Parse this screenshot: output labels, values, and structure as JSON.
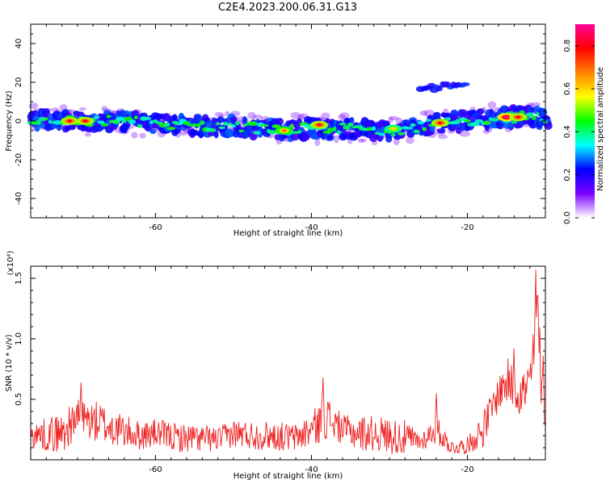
{
  "figure_title": "C2E4.2023.200.06.31.G13",
  "chart_data": [
    {
      "type": "heatmap",
      "xlabel": "Height of straight line (km)",
      "ylabel": "Frequency (Hz)",
      "xlim": [
        -76,
        -10
      ],
      "ylim": [
        -50,
        50
      ],
      "x_ticks": [
        -60,
        -40,
        -20
      ],
      "y_ticks": [
        -40,
        -20,
        0,
        20,
        40
      ],
      "colorbar": {
        "label": "Normalized spectral amplitude",
        "range": [
          0.0,
          0.9
        ],
        "ticks": [
          "0.0",
          "0.2",
          "0.4",
          "0.6",
          "0.8"
        ],
        "colors": [
          "#ffffff",
          "#7b00ff",
          "#0000ff",
          "#00ffff",
          "#00ff00",
          "#ffff00",
          "#ff8000",
          "#ff0000",
          "#ff0099"
        ]
      },
      "main_band_center_hz": [
        [
          -76,
          1
        ],
        [
          -70,
          0
        ],
        [
          -65,
          0
        ],
        [
          -60,
          -1
        ],
        [
          -55,
          -2
        ],
        [
          -50,
          -3
        ],
        [
          -45,
          -4
        ],
        [
          -40,
          -4
        ],
        [
          -35,
          -4
        ],
        [
          -30,
          -5
        ],
        [
          -25,
          -2
        ],
        [
          -20,
          0
        ],
        [
          -16,
          2
        ],
        [
          -12,
          2
        ],
        [
          -10,
          1
        ]
      ],
      "secondary_feature": {
        "x": [
          -26,
          -20
        ],
        "center_hz": [
          16,
          20
        ]
      },
      "hot_spots": [
        {
          "x": -71,
          "y": 0,
          "v": 0.8
        },
        {
          "x": -69,
          "y": 0,
          "v": 0.8
        },
        {
          "x": -43.5,
          "y": -5,
          "v": 0.7
        },
        {
          "x": -39,
          "y": -2,
          "v": 0.8
        },
        {
          "x": -29.5,
          "y": -4,
          "v": 0.6
        },
        {
          "x": -23.5,
          "y": -1,
          "v": 0.8
        },
        {
          "x": -15,
          "y": 2,
          "v": 0.9
        },
        {
          "x": -13.5,
          "y": 2,
          "v": 0.8
        }
      ]
    },
    {
      "type": "line",
      "xlabel": "Height of straight line (km)",
      "ylabel": "SNR (10 * v/v)",
      "y_scale_label": "(x10⁴)",
      "xlim": [
        -76,
        -10
      ],
      "ylim": [
        0,
        1.6
      ],
      "x_ticks": [
        -60,
        -40,
        -20
      ],
      "y_ticks": [
        "0.5",
        "1.0",
        "1.5"
      ],
      "series_color": "#ee2222",
      "envelope": {
        "x": [
          -76,
          -72,
          -70,
          -67,
          -65,
          -62,
          -60,
          -57,
          -55,
          -52,
          -50,
          -47,
          -45,
          -42,
          -40,
          -38,
          -36,
          -34,
          -32,
          -30,
          -28,
          -26,
          -24,
          -22,
          -20,
          -18,
          -16,
          -15,
          -13,
          -12,
          -11,
          -10.5,
          -10
        ],
        "mid": [
          0.2,
          0.22,
          0.35,
          0.3,
          0.25,
          0.2,
          0.22,
          0.18,
          0.18,
          0.17,
          0.22,
          0.2,
          0.2,
          0.18,
          0.25,
          0.35,
          0.25,
          0.22,
          0.22,
          0.2,
          0.18,
          0.15,
          0.25,
          0.1,
          0.12,
          0.25,
          0.55,
          0.65,
          0.55,
          0.6,
          1.2,
          0.6,
          0.35
        ],
        "amp": [
          0.1,
          0.18,
          0.15,
          0.18,
          0.15,
          0.12,
          0.12,
          0.12,
          0.12,
          0.1,
          0.12,
          0.12,
          0.12,
          0.12,
          0.15,
          0.18,
          0.12,
          0.15,
          0.15,
          0.15,
          0.15,
          0.08,
          0.12,
          0.06,
          0.07,
          0.15,
          0.15,
          0.2,
          0.2,
          0.25,
          0.35,
          0.2,
          0.1
        ]
      },
      "peaks": [
        {
          "x": -69.5,
          "y": 0.64
        },
        {
          "x": -38.5,
          "y": 0.68
        },
        {
          "x": -24,
          "y": 0.55
        },
        {
          "x": -14,
          "y": 0.92
        },
        {
          "x": -11.2,
          "y": 1.57
        },
        {
          "x": -10.3,
          "y": 0.86
        }
      ]
    }
  ]
}
